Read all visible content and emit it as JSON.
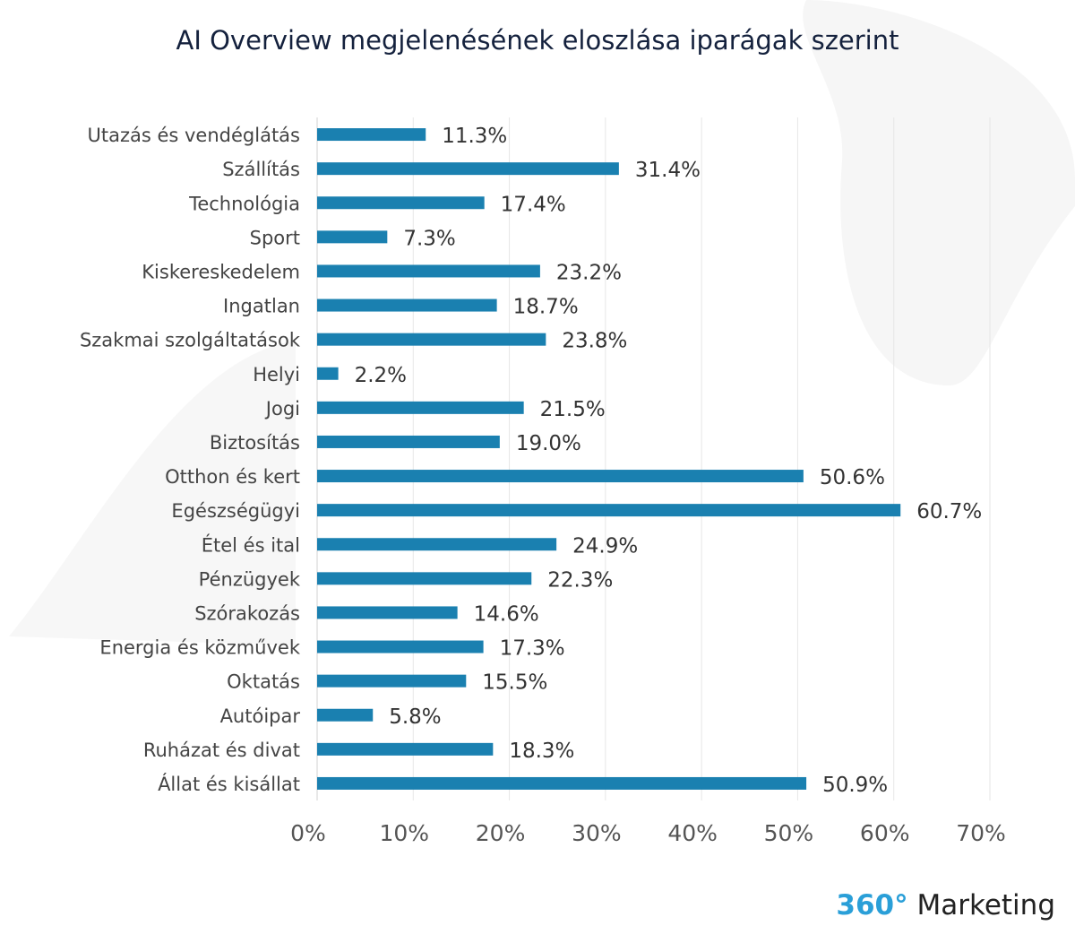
{
  "chart_data": {
    "type": "bar",
    "orientation": "horizontal",
    "title": "AI Overview megjelenésének eloszlása iparágak szerint",
    "categories": [
      "Utazás és vendéglátás",
      "Szállítás",
      "Technológia",
      "Sport",
      "Kiskereskedelem",
      "Ingatlan",
      "Szakmai szolgáltatások",
      "Helyi",
      "Jogi",
      "Biztosítás",
      "Otthon és kert",
      "Egészségügyi",
      "Étel és ital",
      "Pénzügyek",
      "Szórakozás",
      "Energia és közművek",
      "Oktatás",
      "Autóipar",
      "Ruházat és divat",
      "Állat és kisállat"
    ],
    "values": [
      11.3,
      31.4,
      17.4,
      7.3,
      23.2,
      18.7,
      23.8,
      2.2,
      21.5,
      19.0,
      50.6,
      60.7,
      24.9,
      22.3,
      14.6,
      17.3,
      15.5,
      5.8,
      18.3,
      50.9
    ],
    "data_labels": [
      "11.3%",
      "31.4%",
      "17.4%",
      "7.3%",
      "23.2%",
      "18.7%",
      "23.8%",
      "2.2%",
      "21.5%",
      "19.0%",
      "50.6%",
      "60.7%",
      "24.9%",
      "22.3%",
      "14.6%",
      "17.3%",
      "15.5%",
      "5.8%",
      "18.3%",
      "50.9%"
    ],
    "xlim": [
      0,
      70
    ],
    "x_ticks": [
      "0%",
      "10%",
      "20%",
      "30%",
      "40%",
      "50%",
      "60%",
      "70%"
    ],
    "grid": "vertical",
    "bar_color": "#1a80b0"
  },
  "logo": {
    "num": "360°",
    "text": " Marketing"
  }
}
